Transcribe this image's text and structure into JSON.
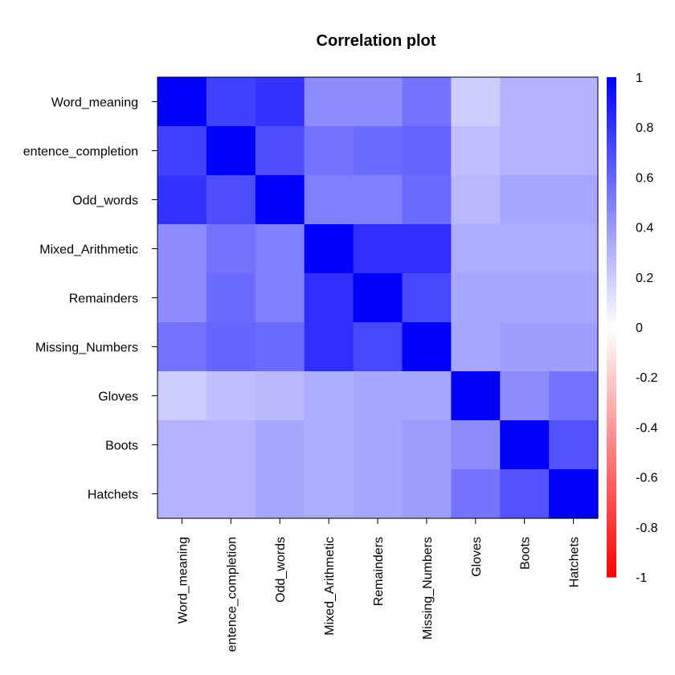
{
  "chart_data": {
    "type": "heatmap",
    "title": "Correlation plot",
    "variables": [
      "Word_meaning",
      "Sentence_completion",
      "Odd_words",
      "Mixed_Arithmetic",
      "Remainders",
      "Missing_Numbers",
      "Gloves",
      "Boots",
      "Hatchets"
    ],
    "row_labels": [
      "Word_meaning",
      "entence_completion",
      "Odd_words",
      "Mixed_Arithmetic",
      "Remainders",
      "Missing_Numbers",
      "Gloves",
      "Boots",
      "Hatchets"
    ],
    "col_labels": [
      "Word_meaning",
      "entence_completion",
      "Odd_words",
      "Mixed_Arithmetic",
      "Remainders",
      "Missing_Numbers",
      "Gloves",
      "Boots",
      "Hatchets"
    ],
    "values": [
      [
        1.0,
        0.75,
        0.8,
        0.45,
        0.45,
        0.55,
        0.2,
        0.3,
        0.3
      ],
      [
        0.75,
        1.0,
        0.7,
        0.55,
        0.58,
        0.6,
        0.25,
        0.3,
        0.3
      ],
      [
        0.8,
        0.7,
        1.0,
        0.5,
        0.5,
        0.58,
        0.28,
        0.35,
        0.35
      ],
      [
        0.45,
        0.55,
        0.5,
        1.0,
        0.82,
        0.82,
        0.32,
        0.32,
        0.32
      ],
      [
        0.45,
        0.58,
        0.5,
        0.82,
        1.0,
        0.72,
        0.35,
        0.35,
        0.35
      ],
      [
        0.55,
        0.6,
        0.58,
        0.82,
        0.72,
        1.0,
        0.35,
        0.38,
        0.38
      ],
      [
        0.2,
        0.25,
        0.28,
        0.32,
        0.35,
        0.35,
        1.0,
        0.45,
        0.55
      ],
      [
        0.3,
        0.3,
        0.35,
        0.32,
        0.35,
        0.38,
        0.45,
        1.0,
        0.68
      ],
      [
        0.3,
        0.3,
        0.35,
        0.32,
        0.35,
        0.38,
        0.55,
        0.68,
        1.0
      ]
    ],
    "scale": {
      "min": -1,
      "max": 1,
      "ticks": [
        "1",
        "0.8",
        "0.6",
        "0.4",
        "0.2",
        "0",
        "-0.2",
        "-0.4",
        "-0.6",
        "-0.8",
        "-1"
      ],
      "colors": {
        "negative": "#ff0000",
        "zero": "#ffffff",
        "positive": "#0000ff"
      }
    },
    "legend_position": "right",
    "grid": false
  }
}
